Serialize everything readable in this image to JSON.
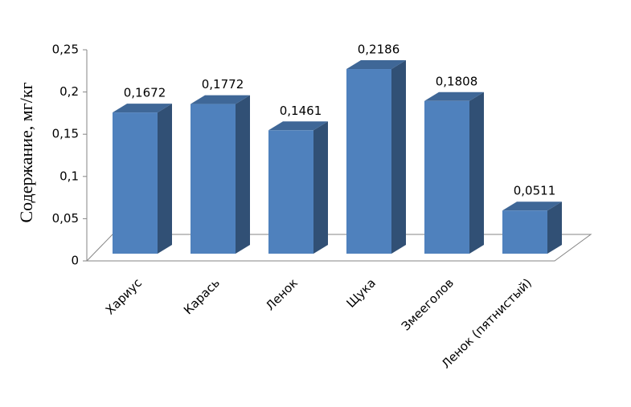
{
  "chart_data": {
    "type": "bar3d",
    "y_label": "Содержание, мг/кг",
    "categories": [
      "Хариус",
      "Карась",
      "Ленок",
      "Щука",
      "Змееголов",
      "Ленок (пятнистый)"
    ],
    "values": [
      0.1672,
      0.1772,
      0.1461,
      0.2186,
      0.1808,
      0.0511
    ],
    "value_labels": [
      "0,1672",
      "0,1772",
      "0,1461",
      "0,2186",
      "0,1808",
      "0,0511"
    ],
    "color": "#4f81bd",
    "ylim": [
      0,
      0.25
    ],
    "yticks": [
      0,
      {
        "value": 0.05,
        "label": "0,05"
      },
      {
        "value": 0.1,
        "label": "0,1"
      },
      {
        "value": 0.15,
        "label": "0,15"
      },
      {
        "value": 0.2,
        "label": "0,2"
      },
      {
        "value": 0.25,
        "label": "0,25"
      }
    ]
  }
}
